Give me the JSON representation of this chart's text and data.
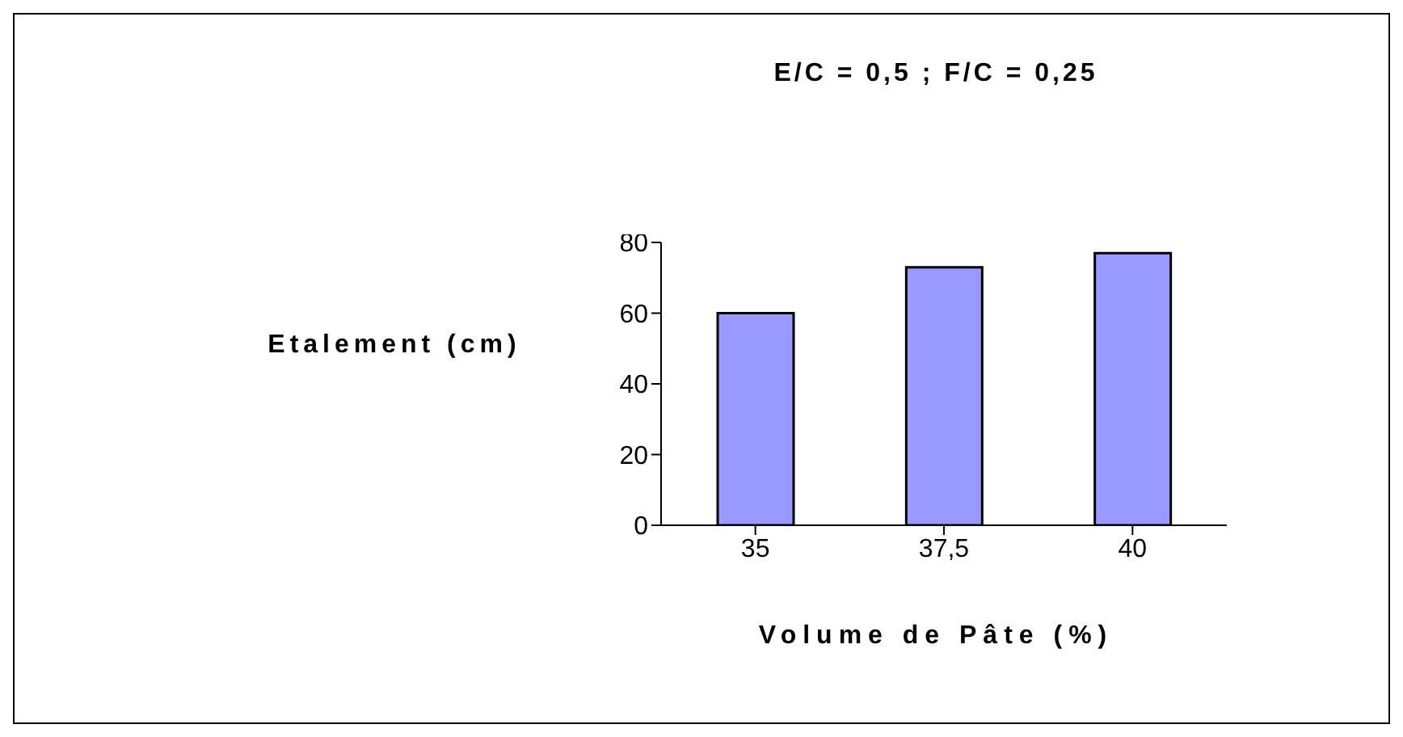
{
  "chart_data": {
    "type": "bar",
    "title": "E/C = 0,5 ; F/C = 0,25",
    "xlabel": "Volume de Pâte (%)",
    "ylabel": "Etalement (cm)",
    "categories": [
      "35",
      "37,5",
      "40"
    ],
    "values": [
      60,
      73,
      77
    ],
    "color": "#9999ff",
    "ylim": [
      0,
      80
    ],
    "yticks": [
      0,
      20,
      40,
      60,
      80
    ],
    "grid": false,
    "legend": false
  }
}
